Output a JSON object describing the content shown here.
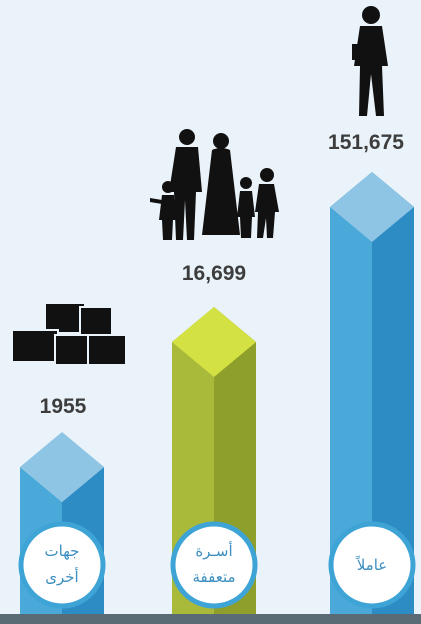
{
  "items": [
    {
      "value": "1955",
      "label": [
        "جهات",
        "أخرى"
      ]
    },
    {
      "value": "16,699",
      "label": [
        "أسـرة",
        "متعففة"
      ]
    },
    {
      "value": "151,675",
      "label": [
        "عاملاً"
      ]
    }
  ]
}
